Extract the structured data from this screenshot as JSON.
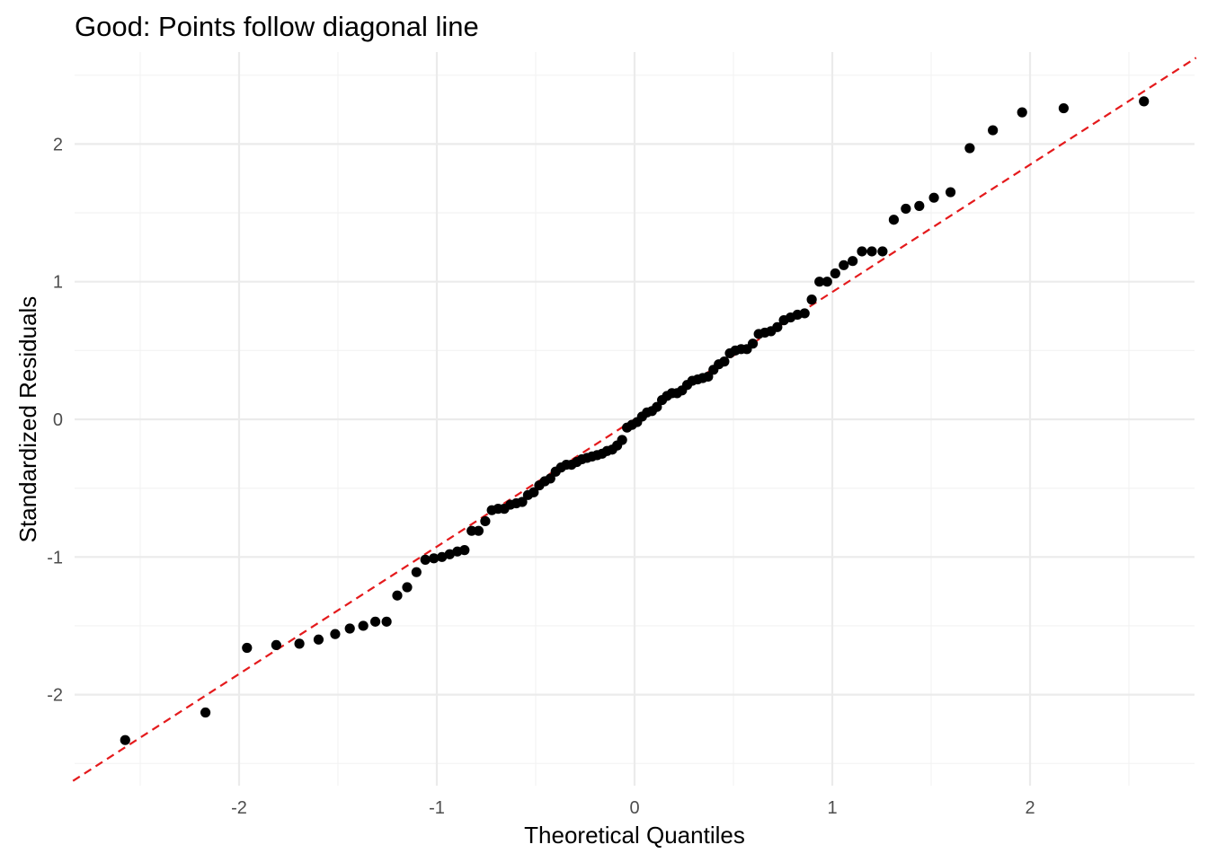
{
  "chart_data": {
    "type": "scatter",
    "title": "Good: Points follow diagonal line",
    "xlabel": "Theoretical Quantiles",
    "ylabel": "Standardized Residuals",
    "xlim": [
      -2.84,
      2.84
    ],
    "ylim": [
      -2.6,
      2.6
    ],
    "x_ticks": [
      -2,
      -1,
      0,
      1,
      2
    ],
    "y_ticks": [
      -2,
      -1,
      0,
      1,
      2
    ],
    "x_tick_labels": [
      "-2",
      "-1",
      "0",
      "1",
      "2"
    ],
    "y_tick_labels": [
      "-2",
      "-1",
      "0",
      "1",
      "2"
    ],
    "grid": true,
    "reference_line": {
      "intercept": 0.0,
      "slope": 0.925,
      "color": "#e41a1c",
      "style": "dashed"
    },
    "point_color": "#000000",
    "points": [
      [
        -2.576,
        -2.33
      ],
      [
        -2.17,
        -2.13
      ],
      [
        -1.96,
        -1.66
      ],
      [
        -1.812,
        -1.64
      ],
      [
        -1.695,
        -1.63
      ],
      [
        -1.598,
        -1.6
      ],
      [
        -1.514,
        -1.56
      ],
      [
        -1.44,
        -1.52
      ],
      [
        -1.372,
        -1.5
      ],
      [
        -1.311,
        -1.47
      ],
      [
        -1.254,
        -1.47
      ],
      [
        -1.2,
        -1.28
      ],
      [
        -1.15,
        -1.22
      ],
      [
        -1.103,
        -1.11
      ],
      [
        -1.058,
        -1.02
      ],
      [
        -1.015,
        -1.01
      ],
      [
        -0.974,
        -1.0
      ],
      [
        -0.935,
        -0.98
      ],
      [
        -0.896,
        -0.96
      ],
      [
        -0.86,
        -0.95
      ],
      [
        -0.824,
        -0.81
      ],
      [
        -0.789,
        -0.81
      ],
      [
        -0.755,
        -0.74
      ],
      [
        -0.722,
        -0.66
      ],
      [
        -0.69,
        -0.65
      ],
      [
        -0.659,
        -0.65
      ],
      [
        -0.628,
        -0.62
      ],
      [
        -0.598,
        -0.61
      ],
      [
        -0.568,
        -0.6
      ],
      [
        -0.539,
        -0.55
      ],
      [
        -0.51,
        -0.53
      ],
      [
        -0.482,
        -0.48
      ],
      [
        -0.454,
        -0.45
      ],
      [
        -0.426,
        -0.43
      ],
      [
        -0.399,
        -0.38
      ],
      [
        -0.372,
        -0.35
      ],
      [
        -0.345,
        -0.33
      ],
      [
        -0.319,
        -0.33
      ],
      [
        -0.292,
        -0.31
      ],
      [
        -0.266,
        -0.29
      ],
      [
        -0.24,
        -0.28
      ],
      [
        -0.215,
        -0.27
      ],
      [
        -0.189,
        -0.26
      ],
      [
        -0.164,
        -0.25
      ],
      [
        -0.139,
        -0.23
      ],
      [
        -0.113,
        -0.22
      ],
      [
        -0.088,
        -0.19
      ],
      [
        -0.063,
        -0.15
      ],
      [
        -0.038,
        -0.06
      ],
      [
        -0.013,
        -0.04
      ],
      [
        0.013,
        -0.02
      ],
      [
        0.038,
        0.02
      ],
      [
        0.063,
        0.05
      ],
      [
        0.088,
        0.06
      ],
      [
        0.113,
        0.09
      ],
      [
        0.139,
        0.14
      ],
      [
        0.164,
        0.17
      ],
      [
        0.189,
        0.19
      ],
      [
        0.215,
        0.19
      ],
      [
        0.24,
        0.21
      ],
      [
        0.266,
        0.25
      ],
      [
        0.292,
        0.28
      ],
      [
        0.319,
        0.29
      ],
      [
        0.345,
        0.3
      ],
      [
        0.372,
        0.31
      ],
      [
        0.399,
        0.36
      ],
      [
        0.426,
        0.4
      ],
      [
        0.454,
        0.42
      ],
      [
        0.482,
        0.48
      ],
      [
        0.51,
        0.5
      ],
      [
        0.539,
        0.51
      ],
      [
        0.568,
        0.51
      ],
      [
        0.598,
        0.55
      ],
      [
        0.628,
        0.62
      ],
      [
        0.659,
        0.63
      ],
      [
        0.69,
        0.64
      ],
      [
        0.722,
        0.67
      ],
      [
        0.755,
        0.72
      ],
      [
        0.789,
        0.74
      ],
      [
        0.824,
        0.76
      ],
      [
        0.86,
        0.77
      ],
      [
        0.896,
        0.87
      ],
      [
        0.935,
        1.0
      ],
      [
        0.974,
        1.0
      ],
      [
        1.015,
        1.06
      ],
      [
        1.058,
        1.12
      ],
      [
        1.103,
        1.15
      ],
      [
        1.15,
        1.22
      ],
      [
        1.2,
        1.22
      ],
      [
        1.254,
        1.22
      ],
      [
        1.311,
        1.45
      ],
      [
        1.372,
        1.53
      ],
      [
        1.44,
        1.55
      ],
      [
        1.514,
        1.61
      ],
      [
        1.598,
        1.65
      ],
      [
        1.695,
        1.97
      ],
      [
        1.812,
        2.1
      ],
      [
        1.96,
        2.23
      ],
      [
        2.17,
        2.26
      ],
      [
        2.576,
        2.31
      ]
    ]
  }
}
